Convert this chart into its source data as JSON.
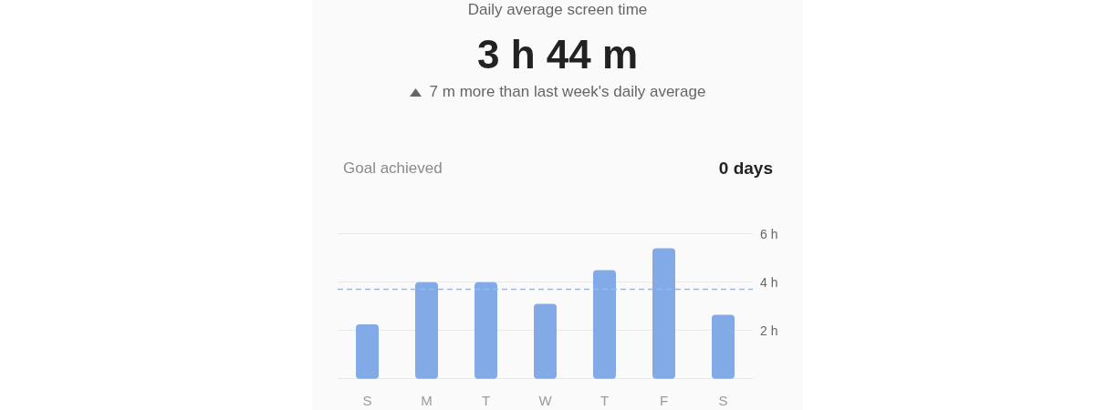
{
  "chart_data": {
    "type": "bar",
    "title": "Daily average screen time",
    "subtitle": "3 h 44 m",
    "annotations": [
      "7 m more than last week's daily average",
      "Goal achieved",
      "0 days"
    ],
    "categories": [
      "S",
      "M",
      "T",
      "W",
      "T",
      "F",
      "S"
    ],
    "values": [
      2.25,
      4.0,
      4.0,
      3.1,
      4.5,
      5.4,
      2.65
    ],
    "color": "#81aae6",
    "ylim": [
      0,
      6
    ],
    "yticks": [
      {
        "value": 0,
        "label": null
      },
      {
        "value": 2,
        "label": "2 h"
      },
      {
        "value": 4,
        "label": "4 h"
      },
      {
        "value": 6,
        "label": "6 h"
      }
    ],
    "grid": "y",
    "ref_lines": [
      {
        "axis": "y",
        "value": 3.73,
        "color": "#8fbcf3",
        "line_style": "dashed"
      }
    ]
  }
}
